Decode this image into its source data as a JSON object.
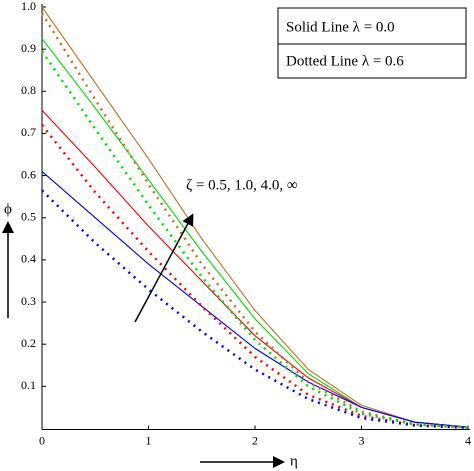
{
  "chart_data": {
    "type": "line",
    "x_label": "η",
    "y_label": "ϕ",
    "legend": [
      "Solid Line  λ = 0.0",
      "Dotted Line λ = 0.6"
    ],
    "annotation": "ζ = 0.5, 1.0, 4.0, ∞",
    "x": [
      0,
      0.5,
      1,
      1.5,
      2,
      2.5,
      3,
      3.5,
      4
    ],
    "series": [
      {
        "color": "#c0702a",
        "style": "solid",
        "values": [
          1.0,
          0.82,
          0.64,
          0.45,
          0.28,
          0.14,
          0.055,
          0.015,
          0.003
        ]
      },
      {
        "color": "#00dd00",
        "style": "solid",
        "values": [
          0.925,
          0.76,
          0.59,
          0.42,
          0.26,
          0.13,
          0.05,
          0.015,
          0.003
        ]
      },
      {
        "color": "#ff0000",
        "style": "solid",
        "values": [
          0.755,
          0.62,
          0.48,
          0.35,
          0.22,
          0.12,
          0.05,
          0.015,
          0.003
        ]
      },
      {
        "color": "#0000ff",
        "style": "solid",
        "values": [
          0.61,
          0.5,
          0.39,
          0.29,
          0.19,
          0.11,
          0.05,
          0.015,
          0.003
        ]
      },
      {
        "color": "#c0702a",
        "style": "dotted",
        "values": [
          0.985,
          0.78,
          0.58,
          0.39,
          0.23,
          0.11,
          0.04,
          0.01,
          0.002
        ]
      },
      {
        "color": "#00dd00",
        "style": "dotted",
        "values": [
          0.895,
          0.71,
          0.53,
          0.36,
          0.21,
          0.1,
          0.035,
          0.01,
          0.002
        ]
      },
      {
        "color": "#ff0000",
        "style": "dotted",
        "values": [
          0.72,
          0.56,
          0.42,
          0.29,
          0.17,
          0.08,
          0.03,
          0.008,
          0.002
        ]
      },
      {
        "color": "#0000ff",
        "style": "dotted",
        "values": [
          0.565,
          0.44,
          0.33,
          0.23,
          0.14,
          0.07,
          0.025,
          0.007,
          0.002
        ]
      }
    ],
    "xlim": [
      0,
      4
    ],
    "xticks": [
      0,
      1,
      2,
      3,
      4
    ],
    "ylim": [
      0,
      1.0
    ],
    "yticks": [
      0.1,
      0.2,
      0.3,
      0.4,
      0.5,
      0.6,
      0.7,
      0.8,
      0.9,
      {
        "value": 1,
        "label": "1.0"
      }
    ]
  }
}
